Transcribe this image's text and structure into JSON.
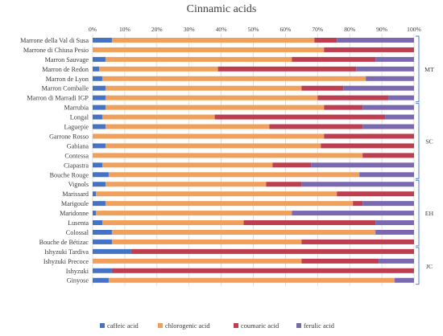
{
  "chart_data": {
    "type": "bar",
    "orientation": "horizontal",
    "stacked": "percent",
    "title": "Cinnamic acids",
    "xlim": [
      0,
      100
    ],
    "xticks": [
      "0%",
      "10%",
      "20%",
      "30%",
      "40%",
      "50%",
      "60%",
      "70%",
      "80%",
      "90%",
      "100%"
    ],
    "grid": true,
    "legend_position": "bottom",
    "categories": [
      "Marrone della Val di Susa",
      "Marrone di Chiusa Pesio",
      "Marron Sauvage",
      "Marron de Redon",
      "Marron de Lyon",
      "Marron Comballe",
      "Marron di Marradi IGP",
      "Marrubia",
      "Longal",
      "Laguepie",
      "Garrone Rosso",
      "Gabiana",
      "Contessa",
      "Ciapastra",
      "Bouche Rouge",
      "Vignols",
      "Marissard",
      "Marigoule",
      "Maridonne",
      "Lusenta",
      "Colossal",
      "Bouche de Bétizac",
      "Ishyzuki Tardiva",
      "Ishyzuki Precoce",
      "Ishyzuki",
      "Ginyose"
    ],
    "series": [
      {
        "name": "caffeic acid",
        "color": "#4472c4",
        "values": [
          6,
          0,
          4,
          2,
          3,
          4,
          4,
          4,
          3,
          4,
          0,
          4,
          0,
          3,
          5,
          4,
          1,
          4,
          1,
          3,
          6,
          6,
          12,
          0,
          6,
          5
        ]
      },
      {
        "name": "chlorogenic acid",
        "color": "#f0a05a",
        "values": [
          63,
          72,
          58,
          37,
          82,
          61,
          66,
          68,
          35,
          51,
          72,
          67,
          84,
          53,
          78,
          50,
          75,
          77,
          61,
          44,
          82,
          59,
          0,
          65,
          0,
          89
        ]
      },
      {
        "name": "coumaric acid",
        "color": "#be3d4e",
        "values": [
          7,
          28,
          26,
          43,
          0,
          13,
          22,
          12,
          53,
          29,
          28,
          29,
          16,
          12,
          0,
          11,
          24,
          3,
          0,
          41,
          0,
          35,
          88,
          24,
          94,
          0
        ]
      },
      {
        "name": "ferulic acid",
        "color": "#7a68b0",
        "values": [
          24,
          0,
          12,
          18,
          15,
          22,
          8,
          16,
          9,
          16,
          0,
          0,
          0,
          32,
          17,
          35,
          0,
          16,
          38,
          12,
          12,
          0,
          0,
          11,
          0,
          6
        ]
      }
    ],
    "groups": [
      {
        "label": "MT",
        "start": 0,
        "end": 6
      },
      {
        "label": "SC",
        "start": 7,
        "end": 14
      },
      {
        "label": "EH",
        "start": 15,
        "end": 21
      },
      {
        "label": "JC",
        "start": 22,
        "end": 25
      }
    ]
  }
}
